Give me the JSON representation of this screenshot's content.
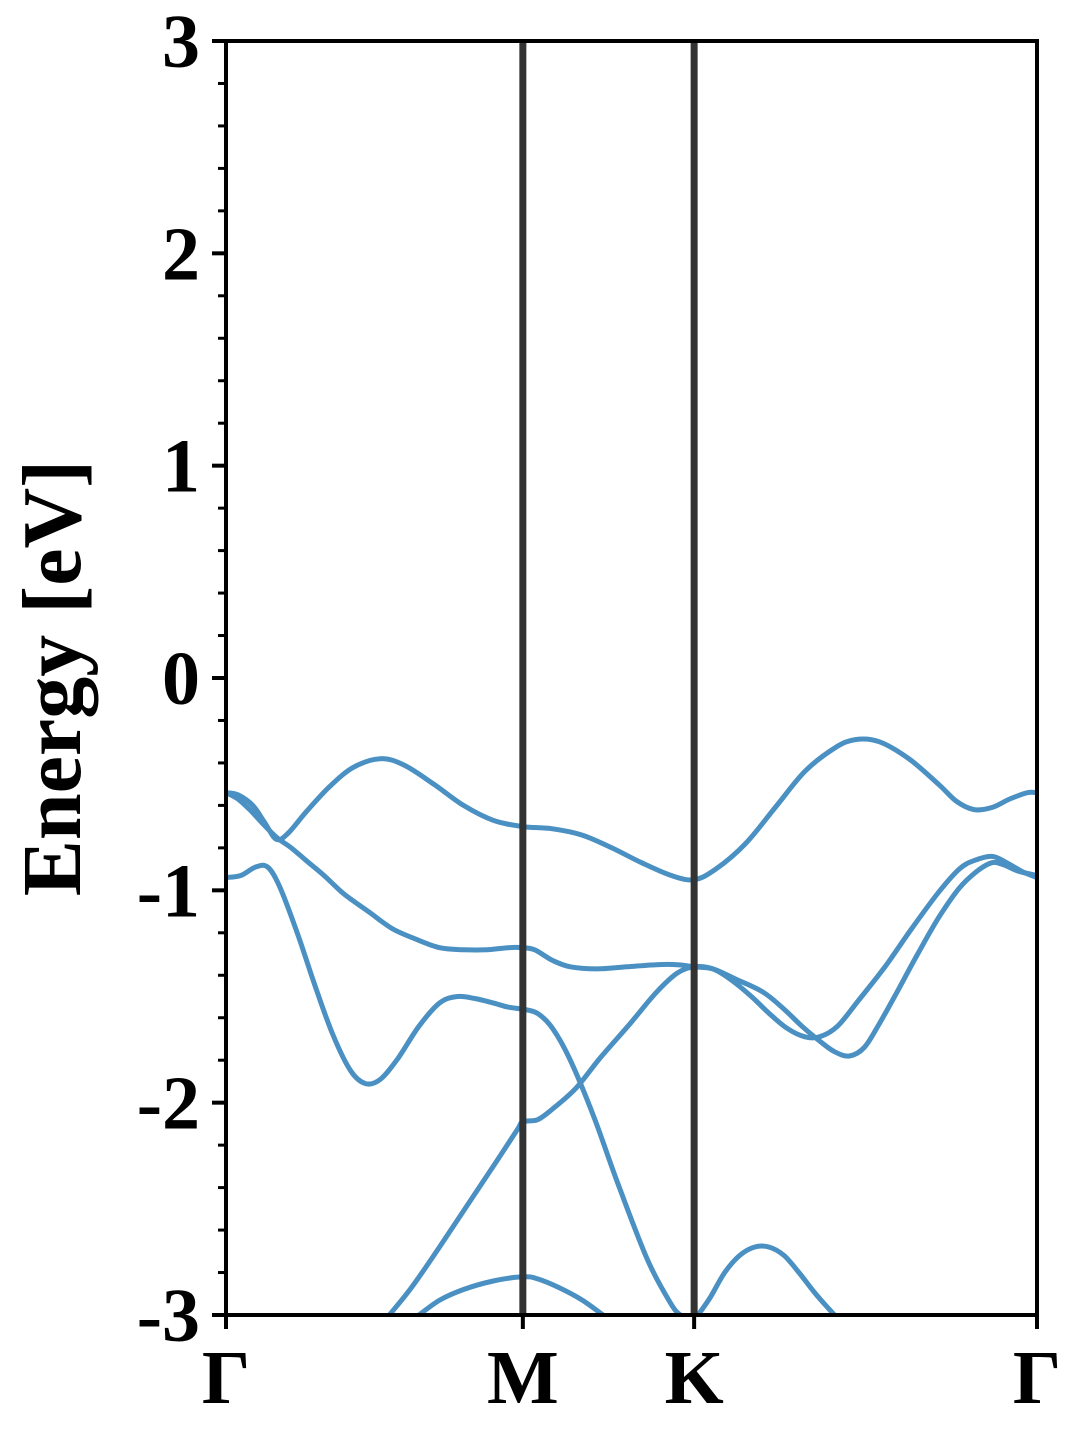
{
  "chart_data": {
    "type": "line",
    "title": "",
    "xlabel": "",
    "ylabel": "Energy [eV]",
    "ylim": [
      -3,
      3
    ],
    "xlim": [
      0,
      2.732
    ],
    "grid": false,
    "legend": "none",
    "ytick_values": [
      -3,
      -2,
      -1,
      0,
      1,
      2,
      3
    ],
    "ytick_labels": [
      "-3",
      "-2",
      "-1",
      "0",
      "1",
      "2",
      "3"
    ],
    "yminor_step": 0.2,
    "kpoints": [
      {
        "label": "Γ",
        "x": 0
      },
      {
        "label": "M",
        "x": 1.0
      },
      {
        "label": "K",
        "x": 1.577
      }
    ],
    "kpoint_end_label": "Γ",
    "colors": {
      "bands": "#4a90c2",
      "kpath_lines": "#333333",
      "axes": "#000000"
    },
    "series": [
      {
        "values": [
          [
            0.0,
            -0.54
          ],
          [
            0.04,
            -0.57
          ],
          [
            0.08,
            -0.62
          ],
          [
            0.12,
            -0.68
          ],
          [
            0.17,
            -0.75
          ],
          [
            0.22,
            -0.8
          ],
          [
            0.27,
            -0.86
          ],
          [
            0.33,
            -0.93
          ],
          [
            0.4,
            -1.02
          ],
          [
            0.48,
            -1.1
          ],
          [
            0.56,
            -1.18
          ],
          [
            0.64,
            -1.23
          ],
          [
            0.72,
            -1.27
          ],
          [
            0.8,
            -1.28
          ],
          [
            0.88,
            -1.28
          ],
          [
            0.95,
            -1.27
          ],
          [
            1.0,
            -1.27
          ],
          [
            1.04,
            -1.28
          ],
          [
            1.1,
            -1.33
          ],
          [
            1.16,
            -1.36
          ],
          [
            1.25,
            -1.37
          ],
          [
            1.35,
            -1.36
          ],
          [
            1.45,
            -1.35
          ],
          [
            1.52,
            -1.35
          ],
          [
            1.577,
            -1.36
          ],
          [
            1.64,
            -1.37
          ],
          [
            1.72,
            -1.42
          ],
          [
            1.81,
            -1.48
          ],
          [
            1.88,
            -1.56
          ],
          [
            1.94,
            -1.64
          ],
          [
            2.0,
            -1.71
          ],
          [
            2.05,
            -1.76
          ],
          [
            2.1,
            -1.78
          ],
          [
            2.15,
            -1.74
          ],
          [
            2.2,
            -1.63
          ],
          [
            2.26,
            -1.48
          ],
          [
            2.33,
            -1.3
          ],
          [
            2.4,
            -1.13
          ],
          [
            2.47,
            -0.99
          ],
          [
            2.53,
            -0.91
          ],
          [
            2.58,
            -0.87
          ],
          [
            2.62,
            -0.88
          ],
          [
            2.67,
            -0.91
          ],
          [
            2.732,
            -0.93
          ]
        ]
      },
      {
        "values": [
          [
            0.0,
            -0.54
          ],
          [
            0.04,
            -0.55
          ],
          [
            0.09,
            -0.6
          ],
          [
            0.13,
            -0.68
          ],
          [
            0.17,
            -0.76
          ],
          [
            0.21,
            -0.73
          ],
          [
            0.27,
            -0.63
          ],
          [
            0.35,
            -0.51
          ],
          [
            0.43,
            -0.42
          ],
          [
            0.52,
            -0.38
          ],
          [
            0.6,
            -0.41
          ],
          [
            0.7,
            -0.5
          ],
          [
            0.8,
            -0.6
          ],
          [
            0.9,
            -0.67
          ],
          [
            1.0,
            -0.7
          ],
          [
            1.1,
            -0.71
          ],
          [
            1.2,
            -0.74
          ],
          [
            1.3,
            -0.8
          ],
          [
            1.4,
            -0.87
          ],
          [
            1.5,
            -0.93
          ],
          [
            1.577,
            -0.95
          ],
          [
            1.65,
            -0.9
          ],
          [
            1.75,
            -0.78
          ],
          [
            1.85,
            -0.61
          ],
          [
            1.95,
            -0.44
          ],
          [
            2.05,
            -0.33
          ],
          [
            2.12,
            -0.29
          ],
          [
            2.2,
            -0.3
          ],
          [
            2.3,
            -0.38
          ],
          [
            2.4,
            -0.5
          ],
          [
            2.46,
            -0.58
          ],
          [
            2.52,
            -0.62
          ],
          [
            2.58,
            -0.61
          ],
          [
            2.64,
            -0.57
          ],
          [
            2.7,
            -0.54
          ],
          [
            2.732,
            -0.54
          ]
        ]
      },
      {
        "values": [
          [
            0.0,
            -0.94
          ],
          [
            0.05,
            -0.93
          ],
          [
            0.1,
            -0.89
          ],
          [
            0.14,
            -0.89
          ],
          [
            0.18,
            -0.98
          ],
          [
            0.24,
            -1.2
          ],
          [
            0.3,
            -1.45
          ],
          [
            0.36,
            -1.68
          ],
          [
            0.42,
            -1.85
          ],
          [
            0.47,
            -1.91
          ],
          [
            0.52,
            -1.89
          ],
          [
            0.58,
            -1.79
          ],
          [
            0.65,
            -1.64
          ],
          [
            0.72,
            -1.53
          ],
          [
            0.78,
            -1.5
          ],
          [
            0.84,
            -1.51
          ],
          [
            0.9,
            -1.53
          ],
          [
            0.95,
            -1.55
          ],
          [
            1.0,
            -1.56
          ],
          [
            1.05,
            -1.58
          ],
          [
            1.1,
            -1.65
          ],
          [
            1.16,
            -1.8
          ],
          [
            1.24,
            -2.07
          ],
          [
            1.32,
            -2.38
          ],
          [
            1.42,
            -2.74
          ],
          [
            1.5,
            -2.95
          ],
          [
            1.53,
            -3.0
          ]
        ]
      },
      {
        "values": [
          [
            0.55,
            -3.0
          ],
          [
            0.62,
            -2.88
          ],
          [
            0.7,
            -2.72
          ],
          [
            0.8,
            -2.51
          ],
          [
            0.9,
            -2.3
          ],
          [
            0.98,
            -2.13
          ],
          [
            1.0,
            -2.09
          ],
          [
            1.05,
            -2.08
          ],
          [
            1.1,
            -2.03
          ],
          [
            1.18,
            -1.93
          ],
          [
            1.26,
            -1.79
          ],
          [
            1.36,
            -1.63
          ],
          [
            1.45,
            -1.48
          ],
          [
            1.52,
            -1.39
          ],
          [
            1.577,
            -1.36
          ],
          [
            1.64,
            -1.37
          ],
          [
            1.7,
            -1.42
          ],
          [
            1.77,
            -1.5
          ],
          [
            1.83,
            -1.58
          ],
          [
            1.89,
            -1.65
          ],
          [
            1.95,
            -1.69
          ],
          [
            2.0,
            -1.69
          ],
          [
            2.06,
            -1.64
          ],
          [
            2.13,
            -1.52
          ],
          [
            2.22,
            -1.36
          ],
          [
            2.31,
            -1.18
          ],
          [
            2.4,
            -1.01
          ],
          [
            2.47,
            -0.9
          ],
          [
            2.52,
            -0.86
          ],
          [
            2.58,
            -0.84
          ],
          [
            2.63,
            -0.87
          ],
          [
            2.68,
            -0.91
          ],
          [
            2.732,
            -0.94
          ]
        ]
      },
      {
        "values": [
          [
            0.65,
            -3.0
          ],
          [
            0.72,
            -2.93
          ],
          [
            0.8,
            -2.88
          ],
          [
            0.9,
            -2.84
          ],
          [
            1.0,
            -2.82
          ],
          [
            1.05,
            -2.83
          ],
          [
            1.12,
            -2.87
          ],
          [
            1.2,
            -2.93
          ],
          [
            1.27,
            -3.0
          ]
        ]
      },
      {
        "values": [
          [
            1.59,
            -3.0
          ],
          [
            1.63,
            -2.92
          ],
          [
            1.68,
            -2.8
          ],
          [
            1.73,
            -2.72
          ],
          [
            1.78,
            -2.68
          ],
          [
            1.83,
            -2.68
          ],
          [
            1.88,
            -2.72
          ],
          [
            1.93,
            -2.8
          ],
          [
            1.98,
            -2.89
          ],
          [
            2.03,
            -2.97
          ],
          [
            2.05,
            -3.0
          ]
        ]
      }
    ]
  }
}
